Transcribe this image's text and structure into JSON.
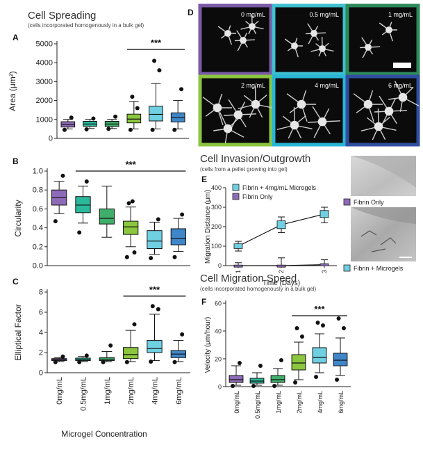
{
  "colors": {
    "c0": "#8e6bb8",
    "c05": "#2bb89b",
    "c1": "#3fae6a",
    "c2": "#8cc63f",
    "c4": "#6fd0e2",
    "c6": "#3f86c8",
    "pink": "#b87bb5",
    "frameD": [
      "#7a5aa6",
      "#3fbfcf",
      "#2e8a5a",
      "#8cc63f",
      "#29b6d6",
      "#2f4ea0"
    ]
  },
  "header": {
    "spreading_title": "Cell Spreading",
    "spreading_subtitle": "(cells incorporated homogenously in a bulk gel)",
    "invasion_title": "Cell Invasion/Outgrowth",
    "invasion_subtitle": "(cells from a pellet growing into gel)",
    "migration_title": "Cell Migration Speed",
    "migration_subtitle": "(cells incorporated homogenously in a bulk gel)"
  },
  "panels": {
    "A": "A",
    "B": "B",
    "C": "C",
    "D": "D",
    "E": "E",
    "F": "F"
  },
  "xcat": [
    "0mg/mL",
    "0.5mg/mL",
    "1mg/mL",
    "2mg/mL",
    "4mg/mL",
    "6mg/mL"
  ],
  "xlabel_c": "Microgel Concentration",
  "sig": "***",
  "micro": {
    "labels": [
      "0 mg/mL",
      "0.5 mg/mL",
      "1 mg/mL",
      "2 mg/mL",
      "4 mg/mL",
      "6 mg/mL"
    ]
  },
  "legend_e": {
    "s1": "Fibrin + 4mg/mL Microgels",
    "s2": "Fibrin Only"
  },
  "photo_labels": {
    "top": "Fibrin Only",
    "bottom": "Fibrin + Microgels"
  },
  "chart_data": [
    {
      "id": "A",
      "type": "box",
      "ylabel": "Area (μm²)",
      "ylim": [
        0,
        5000
      ],
      "yticks": [
        0,
        1000,
        2000,
        3000,
        4000,
        5000
      ],
      "categories": [
        "0mg/mL",
        "0.5mg/mL",
        "1mg/mL",
        "2mg/mL",
        "4mg/mL",
        "6mg/mL"
      ],
      "boxes": [
        {
          "min": 500,
          "q1": 600,
          "median": 720,
          "q3": 880,
          "max": 1000,
          "outliers": [
            450,
            1100
          ]
        },
        {
          "min": 520,
          "q1": 640,
          "median": 760,
          "q3": 900,
          "max": 1000,
          "outliers": [
            480,
            1050
          ]
        },
        {
          "min": 520,
          "q1": 630,
          "median": 760,
          "q3": 900,
          "max": 1000,
          "outliers": [
            500,
            1150
          ]
        },
        {
          "min": 500,
          "q1": 820,
          "median": 1020,
          "q3": 1280,
          "max": 1950,
          "outliers": [
            450,
            1600,
            2200
          ]
        },
        {
          "min": 500,
          "q1": 920,
          "median": 1270,
          "q3": 1700,
          "max": 2900,
          "outliers": [
            450,
            3600,
            4100
          ]
        },
        {
          "min": 500,
          "q1": 870,
          "median": 1100,
          "q3": 1350,
          "max": 2000,
          "outliers": [
            450,
            2600
          ]
        }
      ],
      "significance": {
        "from": 3,
        "to": 5,
        "label": "***",
        "y": 4700
      }
    },
    {
      "id": "B",
      "type": "box",
      "ylabel": "Circularity",
      "ylim": [
        0,
        1.0
      ],
      "yticks": [
        0.0,
        0.2,
        0.4,
        0.6,
        0.8,
        1.0
      ],
      "categories": [
        "0mg/mL",
        "0.5mg/mL",
        "1mg/mL",
        "2mg/mL",
        "4mg/mL",
        "6mg/mL"
      ],
      "boxes": [
        {
          "min": 0.55,
          "q1": 0.64,
          "median": 0.72,
          "q3": 0.8,
          "max": 0.89,
          "outliers": [
            0.47,
            0.95
          ]
        },
        {
          "min": 0.45,
          "q1": 0.56,
          "median": 0.64,
          "q3": 0.73,
          "max": 0.84,
          "outliers": [
            0.35,
            0.89
          ]
        },
        {
          "min": 0.3,
          "q1": 0.44,
          "median": 0.5,
          "q3": 0.6,
          "max": 0.84,
          "outliers": []
        },
        {
          "min": 0.2,
          "q1": 0.33,
          "median": 0.41,
          "q3": 0.47,
          "max": 0.62,
          "outliers": [
            0.09,
            0.14,
            0.66,
            0.68
          ]
        },
        {
          "min": 0.12,
          "q1": 0.18,
          "median": 0.26,
          "q3": 0.37,
          "max": 0.46,
          "outliers": [
            0.08,
            0.49
          ]
        },
        {
          "min": 0.15,
          "q1": 0.22,
          "median": 0.29,
          "q3": 0.39,
          "max": 0.5,
          "outliers": [
            0.09,
            0.54
          ]
        }
      ],
      "significance": {
        "from": 1,
        "to": 5,
        "label": "***",
        "y": 1.0
      }
    },
    {
      "id": "C",
      "type": "box",
      "ylabel": "Elliptical Factor",
      "ylim": [
        0,
        8
      ],
      "yticks": [
        0,
        2,
        4,
        6,
        8
      ],
      "categories": [
        "0mg/mL",
        "0.5mg/mL",
        "1mg/mL",
        "2mg/mL",
        "4mg/mL",
        "6mg/mL"
      ],
      "boxes": [
        {
          "min": 1.1,
          "q1": 1.2,
          "median": 1.3,
          "q3": 1.4,
          "max": 1.5,
          "outliers": [
            1.05,
            1.6
          ]
        },
        {
          "min": 1.1,
          "q1": 1.2,
          "median": 1.3,
          "q3": 1.45,
          "max": 1.6,
          "outliers": [
            1.05,
            1.7
          ]
        },
        {
          "min": 1.1,
          "q1": 1.2,
          "median": 1.35,
          "q3": 1.5,
          "max": 2.1,
          "outliers": [
            1.05,
            2.7
          ]
        },
        {
          "min": 1.1,
          "q1": 1.4,
          "median": 1.8,
          "q3": 2.5,
          "max": 4.2,
          "outliers": [
            1.05,
            4.8
          ]
        },
        {
          "min": 1.2,
          "q1": 2.0,
          "median": 2.4,
          "q3": 3.2,
          "max": 5.8,
          "outliers": [
            1.1,
            6.3,
            6.6
          ]
        },
        {
          "min": 1.1,
          "q1": 1.5,
          "median": 1.85,
          "q3": 2.2,
          "max": 3.2,
          "outliers": [
            1.05,
            3.8
          ]
        }
      ],
      "significance": {
        "from": 3,
        "to": 5,
        "label": "***",
        "y": 7.6
      }
    },
    {
      "id": "E",
      "type": "line",
      "xlabel": "Time (Days)",
      "ylabel": "Migration Distance (μm)",
      "x": [
        1,
        2,
        3
      ],
      "xticks": [
        1,
        2,
        3
      ],
      "ylim": [
        0,
        400
      ],
      "yticks": [
        0,
        100,
        200,
        300,
        400
      ],
      "series": [
        {
          "name": "Fibrin + 4mg/mL Microgels",
          "values": [
            100,
            210,
            265
          ],
          "errlow": [
            75,
            170,
            220
          ],
          "errhigh": [
            125,
            250,
            300
          ],
          "bar_half": [
            12,
            20,
            18
          ]
        },
        {
          "name": "Fibrin Only",
          "values": [
            0,
            0,
            5
          ],
          "errlow": [
            0,
            0,
            0
          ],
          "errhigh": [
            15,
            40,
            30
          ],
          "bar_half": [
            3,
            3,
            5
          ]
        }
      ]
    },
    {
      "id": "F",
      "type": "box",
      "ylabel": "Velocity (μm/hour)",
      "ylim": [
        0,
        60
      ],
      "yticks": [
        0,
        20,
        40,
        60
      ],
      "categories": [
        "0mg/mL",
        "0.5mg/mL",
        "1mg/mL",
        "2mg/mL",
        "4mg/mL",
        "6mg/mL"
      ],
      "boxes": [
        {
          "min": 1,
          "q1": 3,
          "median": 5,
          "q3": 8,
          "max": 15,
          "outliers": [
            0.5,
            17
          ]
        },
        {
          "min": 1,
          "q1": 2.5,
          "median": 4,
          "q3": 6,
          "max": 10,
          "outliers": [
            0.5,
            15
          ]
        },
        {
          "min": 1,
          "q1": 3,
          "median": 5,
          "q3": 8,
          "max": 13,
          "outliers": [
            0.5,
            19
          ]
        },
        {
          "min": 5,
          "q1": 12,
          "median": 17,
          "q3": 23,
          "max": 32,
          "outliers": [
            3,
            36,
            42
          ]
        },
        {
          "min": 10,
          "q1": 17,
          "median": 21,
          "q3": 28,
          "max": 38,
          "outliers": [
            7,
            44,
            46
          ]
        },
        {
          "min": 8,
          "q1": 15,
          "median": 19,
          "q3": 24,
          "max": 35,
          "outliers": [
            5,
            42,
            49
          ]
        }
      ],
      "significance": {
        "from": 3,
        "to": 5,
        "label": "***",
        "y": 51
      }
    }
  ]
}
